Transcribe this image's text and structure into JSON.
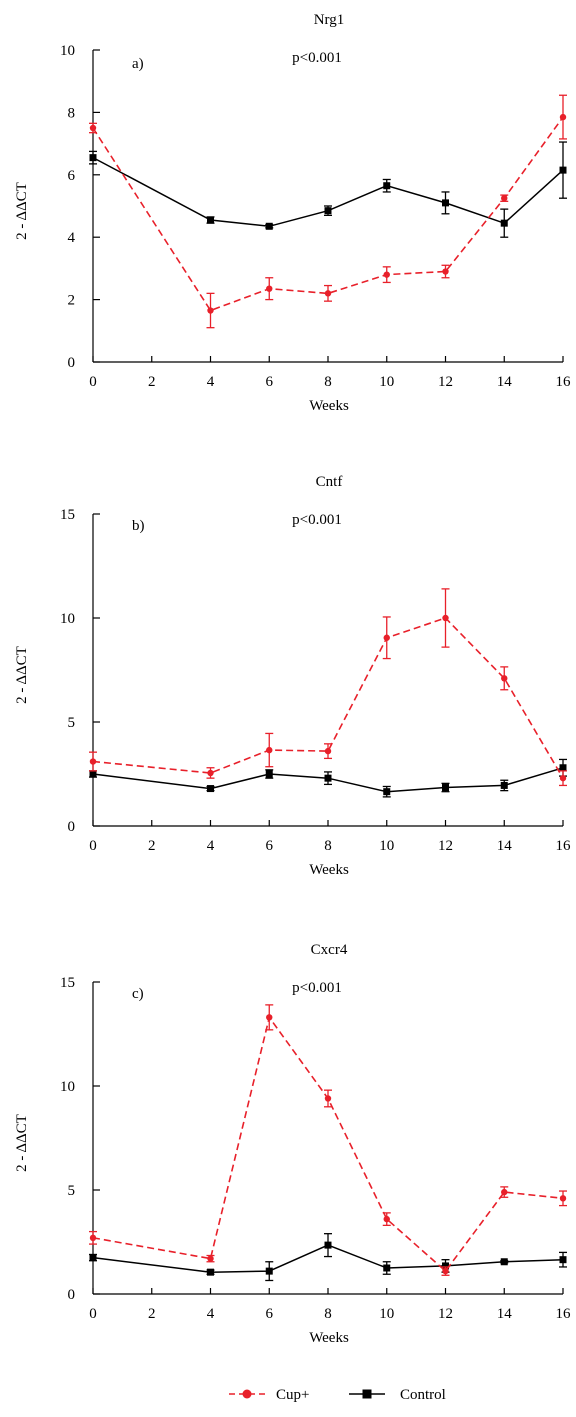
{
  "legend": {
    "placement": "bottom-center",
    "items": [
      {
        "label": "Cup+",
        "color": "#e8202a",
        "marker": "circle",
        "dash": true
      },
      {
        "label": "Control",
        "color": "#000000",
        "marker": "square",
        "dash": false
      }
    ]
  },
  "chart_data": [
    {
      "type": "line",
      "title": "Nrg1",
      "panel_label": "a)",
      "annotation": "p<0.001",
      "xlabel": "Weeks",
      "ylabel": "2 - ΔΔCT",
      "xlim": [
        0,
        16
      ],
      "ylim": [
        0,
        10
      ],
      "xticks": [
        0,
        2,
        4,
        6,
        8,
        10,
        12,
        14,
        16
      ],
      "yticks": [
        0,
        2,
        4,
        6,
        8,
        10
      ],
      "grid": false,
      "x": [
        0,
        4,
        6,
        8,
        10,
        12,
        14,
        16
      ],
      "series": [
        {
          "name": "Cup+",
          "color": "#e8202a",
          "values": [
            7.5,
            1.65,
            2.35,
            2.2,
            2.8,
            2.9,
            5.25,
            7.85
          ],
          "errors": [
            0.15,
            0.55,
            0.35,
            0.25,
            0.25,
            0.2,
            0.1,
            0.7
          ]
        },
        {
          "name": "Control",
          "color": "#000000",
          "values": [
            6.55,
            4.55,
            4.35,
            4.85,
            5.65,
            5.1,
            4.45,
            6.15
          ],
          "errors": [
            0.2,
            0.1,
            0.05,
            0.15,
            0.2,
            0.35,
            0.45,
            0.9
          ]
        }
      ]
    },
    {
      "type": "line",
      "title": "Cntf",
      "panel_label": "b)",
      "annotation": "p<0.001",
      "xlabel": "Weeks",
      "ylabel": "2 - ΔΔCT",
      "xlim": [
        0,
        16
      ],
      "ylim": [
        0,
        15
      ],
      "xticks": [
        0,
        2,
        4,
        6,
        8,
        10,
        12,
        14,
        16
      ],
      "yticks": [
        0,
        5,
        10,
        15
      ],
      "grid": false,
      "x": [
        0,
        4,
        6,
        8,
        10,
        12,
        14,
        16
      ],
      "series": [
        {
          "name": "Cup+",
          "color": "#e8202a",
          "values": [
            3.1,
            2.55,
            3.65,
            3.6,
            9.05,
            10.0,
            7.1,
            2.3
          ],
          "errors": [
            0.45,
            0.25,
            0.8,
            0.35,
            1.0,
            1.4,
            0.55,
            0.35
          ]
        },
        {
          "name": "Control",
          "color": "#000000",
          "values": [
            2.5,
            1.8,
            2.5,
            2.3,
            1.65,
            1.85,
            1.95,
            2.8
          ],
          "errors": [
            0.15,
            0.1,
            0.2,
            0.3,
            0.25,
            0.2,
            0.25,
            0.4
          ]
        }
      ]
    },
    {
      "type": "line",
      "title": "Cxcr4",
      "panel_label": "c)",
      "annotation": "p<0.001",
      "xlabel": "Weeks",
      "ylabel": "2 - ΔΔCT",
      "xlim": [
        0,
        16
      ],
      "ylim": [
        0,
        15
      ],
      "xticks": [
        0,
        2,
        4,
        6,
        8,
        10,
        12,
        14,
        16
      ],
      "yticks": [
        0,
        5,
        10,
        15
      ],
      "grid": false,
      "x": [
        0,
        4,
        6,
        8,
        10,
        12,
        14,
        16
      ],
      "series": [
        {
          "name": "Cup+",
          "color": "#e8202a",
          "values": [
            2.7,
            1.7,
            13.3,
            9.4,
            3.6,
            1.1,
            4.9,
            4.6
          ],
          "errors": [
            0.3,
            0.15,
            0.6,
            0.4,
            0.3,
            0.2,
            0.25,
            0.35
          ]
        },
        {
          "name": "Control",
          "color": "#000000",
          "values": [
            1.75,
            1.05,
            1.1,
            2.35,
            1.25,
            1.35,
            1.55,
            1.65
          ],
          "errors": [
            0.15,
            0.1,
            0.45,
            0.55,
            0.3,
            0.3,
            0.05,
            0.35
          ]
        }
      ]
    }
  ]
}
